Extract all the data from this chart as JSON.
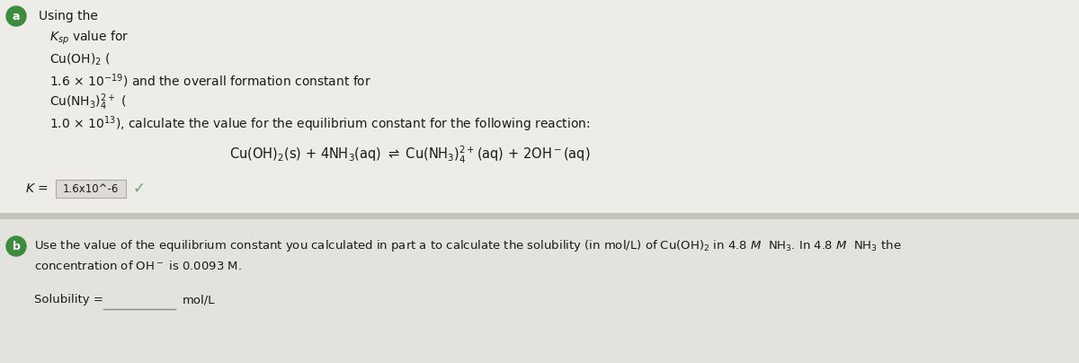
{
  "bg_color_a": "#eeece9",
  "bg_color_b": "#e4e2de",
  "divider_color": "#c5c2bc",
  "green_color": "#3d8b3d",
  "text_color": "#1a1a1a",
  "checkmark_color": "#5aaa5a",
  "fig_width": 12.0,
  "fig_height": 4.04,
  "dpi": 100,
  "line_a": [
    "Using the",
    "$K_{sp}$ value for",
    "Cu(OH)$_2$ (",
    "1.6 × 10$^{-19}$) and the overall formation constant for",
    "Cu(NH$_3$)$_4^{2+}$ (",
    "1.0 × 10$^{13}$), calculate the value for the equilibrium constant for the following reaction:"
  ],
  "equation": "Cu(OH)$_2$(s) + 4NH$_3$(aq) $\\rightleftharpoons$ Cu(NH$_3$)$_4^{2+}$(aq) + 2OH$^-$(aq)",
  "k_label": "$K$ =",
  "k_value": "1.6x10^-6",
  "part_b_line1": "Use the value of the equilibrium constant you calculated in part a to calculate the solubility (in mol/L) of Cu(OH)$_2$ in 4.8 $M$  NH$_3$. In 4.8 $M$  NH$_3$ the",
  "part_b_line2": "concentration of OH$^-$ is 0.0093 M.",
  "solubility_label": "Solubility =",
  "mol_l": "mol/L"
}
